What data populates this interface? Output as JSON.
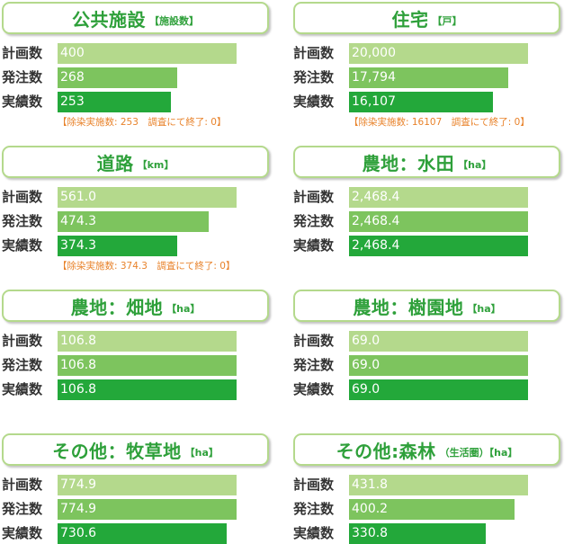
{
  "rowLabels": [
    "計画数",
    "発注数",
    "実績数"
  ],
  "colors": {
    "plan": "#b4d98c",
    "order": "#7dc45e",
    "actual": "#23a83a",
    "title": "#2ea03a",
    "note": "#e8822a"
  },
  "chart_data": [
    {
      "type": "bar",
      "title": "公共施設",
      "unit": "【施設数】",
      "categories": [
        "計画数",
        "発注数",
        "実績数"
      ],
      "values": [
        400,
        268,
        253
      ],
      "labels": [
        "400",
        "268",
        "253"
      ],
      "note": "【除染実施数: 253　調査にて終了: 0】"
    },
    {
      "type": "bar",
      "title": "住宅",
      "unit": "【戸】",
      "categories": [
        "計画数",
        "発注数",
        "実績数"
      ],
      "values": [
        20000,
        17794,
        16107
      ],
      "labels": [
        "20,000",
        "17,794",
        "16,107"
      ],
      "note": "【除染実施数: 16107　調査にて終了: 0】"
    },
    {
      "type": "bar",
      "title": "道路",
      "unit": "【km】",
      "categories": [
        "計画数",
        "発注数",
        "実績数"
      ],
      "values": [
        561.0,
        474.3,
        374.3
      ],
      "labels": [
        "561.0",
        "474.3",
        "374.3"
      ],
      "note": "【除染実施数: 374.3　調査にて終了: 0】"
    },
    {
      "type": "bar",
      "title": "農地：水田",
      "unit": "【ha】",
      "categories": [
        "計画数",
        "発注数",
        "実績数"
      ],
      "values": [
        2468.4,
        2468.4,
        2468.4
      ],
      "labels": [
        "2,468.4",
        "2,468.4",
        "2,468.4"
      ],
      "note": ""
    },
    {
      "type": "bar",
      "title": "農地：畑地",
      "unit": "【ha】",
      "categories": [
        "計画数",
        "発注数",
        "実績数"
      ],
      "values": [
        106.8,
        106.8,
        106.8
      ],
      "labels": [
        "106.8",
        "106.8",
        "106.8"
      ],
      "note": ""
    },
    {
      "type": "bar",
      "title": "農地：樹園地",
      "unit": "【ha】",
      "categories": [
        "計画数",
        "発注数",
        "実績数"
      ],
      "values": [
        69.0,
        69.0,
        69.0
      ],
      "labels": [
        "69.0",
        "69.0",
        "69.0"
      ],
      "note": ""
    },
    {
      "type": "bar",
      "title": "その他：牧草地",
      "unit": "【ha】",
      "categories": [
        "計画数",
        "発注数",
        "実績数"
      ],
      "values": [
        774.9,
        774.9,
        730.6
      ],
      "labels": [
        "774.9",
        "774.9",
        "730.6"
      ],
      "note": ""
    },
    {
      "type": "bar",
      "title": "その他:森林",
      "unit": "（生活圏）【ha】",
      "categories": [
        "計画数",
        "発注数",
        "実績数"
      ],
      "values": [
        431.8,
        400.2,
        330.8
      ],
      "labels": [
        "431.8",
        "400.2",
        "330.8"
      ],
      "note": ""
    }
  ]
}
